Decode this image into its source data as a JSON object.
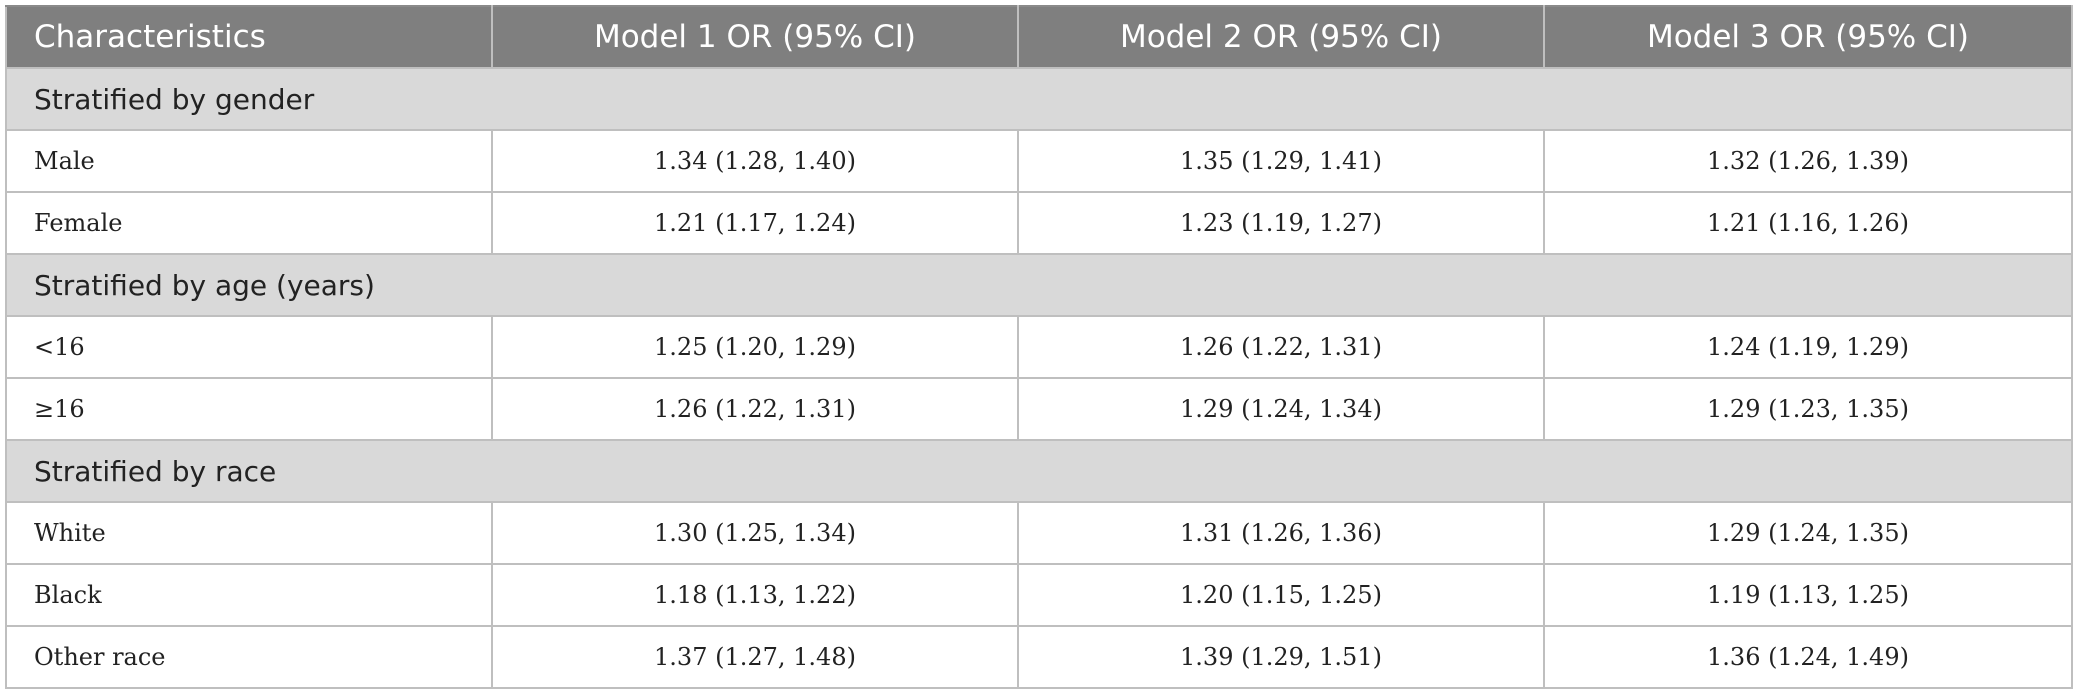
{
  "table": {
    "headers": [
      "Characteristics",
      "Model 1 OR (95% CI)",
      "Model 2 OR (95% CI)",
      "Model 3 OR (95% CI)"
    ],
    "sections": [
      {
        "title": "Stratified by gender",
        "rows": [
          {
            "label": "Male",
            "values": [
              "1.34 (1.28, 1.40)",
              "1.35 (1.29, 1.41)",
              "1.32 (1.26, 1.39)"
            ]
          },
          {
            "label": "Female",
            "values": [
              "1.21 (1.17, 1.24)",
              "1.23 (1.19, 1.27)",
              "1.21 (1.16, 1.26)"
            ]
          }
        ]
      },
      {
        "title": "Stratified by age (years)",
        "rows": [
          {
            "label": "<16",
            "values": [
              "1.25 (1.20, 1.29)",
              "1.26 (1.22, 1.31)",
              "1.24 (1.19, 1.29)"
            ]
          },
          {
            "label": "≥16",
            "values": [
              "1.26 (1.22, 1.31)",
              "1.29 (1.24, 1.34)",
              "1.29 (1.23, 1.35)"
            ]
          }
        ]
      },
      {
        "title": "Stratified by race",
        "rows": [
          {
            "label": "White",
            "values": [
              "1.30 (1.25, 1.34)",
              "1.31 (1.26, 1.36)",
              "1.29 (1.24, 1.35)"
            ]
          },
          {
            "label": "Black",
            "values": [
              "1.18 (1.13, 1.22)",
              "1.20 (1.15, 1.25)",
              "1.19 (1.13, 1.25)"
            ]
          },
          {
            "label": "Other race",
            "values": [
              "1.37 (1.27, 1.48)",
              "1.39 (1.29, 1.51)",
              "1.36 (1.24, 1.49)"
            ]
          }
        ]
      }
    ]
  }
}
